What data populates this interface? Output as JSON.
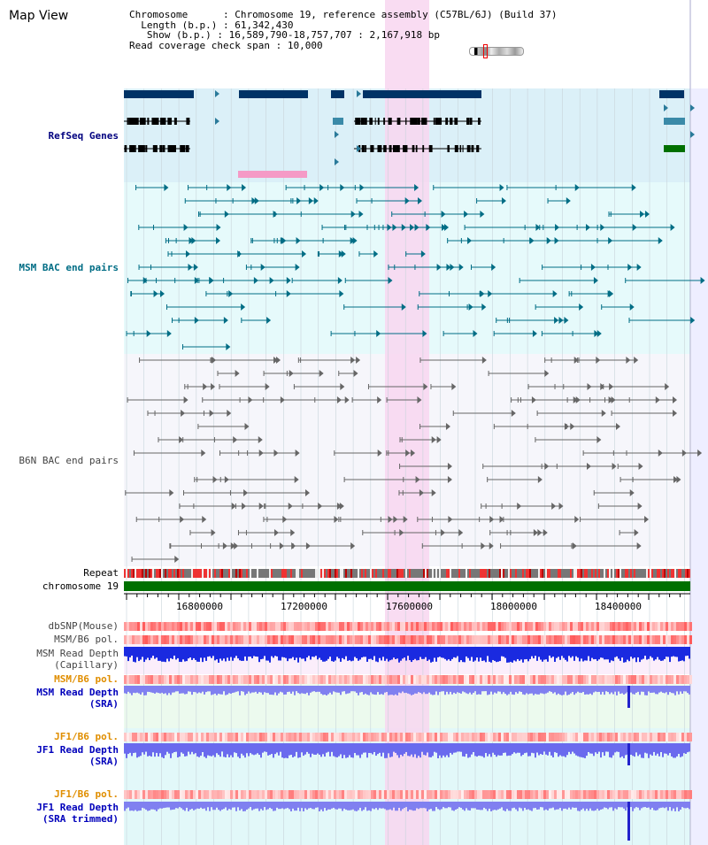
{
  "header": {
    "title": "Map View",
    "chromosome_label": "Chromosome",
    "chromosome_value": "Chromosome 19, reference assembly (C57BL/6J) (Build 37)",
    "length_label": "Length (b.p.)",
    "length_value": "61,342,430",
    "show_label": "Show (b.p.)",
    "show_value": "16,589,790-18,757,707 : 2,167,918 bp",
    "coverage_label": "Read coverage check span",
    "coverage_value": "10,000"
  },
  "tracks": {
    "refseq": "RefSeq Genes",
    "msm_bac": "MSM BAC end pairs",
    "b6n_bac": "B6N BAC end pairs",
    "repeat": "Repeat",
    "chromosome": "chromosome 19",
    "dbsnp": "dbSNP(Mouse)",
    "msm_pol": "MSM/B6 pol.",
    "msm_depth_cap_1": "MSM Read Depth",
    "msm_depth_cap_2": "(Capillary)",
    "msm_pol2": "MSM/B6 pol.",
    "msm_depth_sra_1": "MSM Read Depth",
    "msm_depth_sra_2": "(SRA)",
    "jf1_pol": "JF1/B6 pol.",
    "jf1_depth_sra_1": "JF1 Read Depth",
    "jf1_depth_sra_2": "(SRA)",
    "jf1_pol2": "JF1/B6 pol.",
    "jf1_trim_1": "JF1 Read Depth",
    "jf1_trim_2": "(SRA trimmed)"
  },
  "axis": {
    "ticks": [
      "16800000",
      "17200000",
      "17600000",
      "18000000",
      "18400000"
    ]
  },
  "colors": {
    "refseq_bg": "#dbf0f8",
    "msm_bg": "#e6fafb",
    "b6n_bg": "#f6f6fb",
    "highlight": "#f8d6f0",
    "navy": "#00007f",
    "teal": "#006d85",
    "orange": "#e08e00",
    "chrom": "#007000"
  }
}
